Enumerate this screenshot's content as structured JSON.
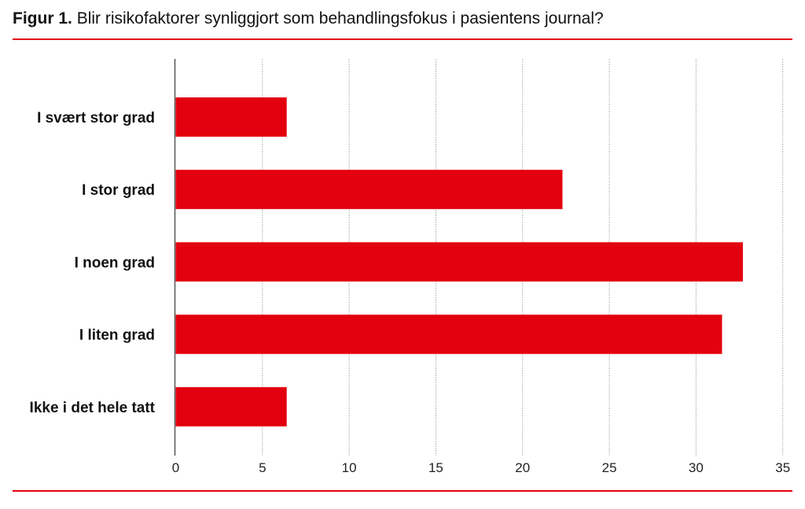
{
  "title": {
    "prefix": "Figur 1.",
    "text": "Blir risikofaktorer synliggjort som behandlingsfokus i pasientens journal?"
  },
  "colors": {
    "bar": "#e3000f",
    "rule": "#e3000f",
    "grid": "#bbbbbb"
  },
  "chart_data": {
    "type": "bar",
    "orientation": "horizontal",
    "title": "Blir risikofaktorer synliggjort som behandlingsfokus i pasientens journal?",
    "categories": [
      "I svært stor grad",
      "I stor grad",
      "I noen grad",
      "I liten grad",
      "Ikke i det hele tatt"
    ],
    "values": [
      6.4,
      22.3,
      32.7,
      31.5,
      6.4
    ],
    "xlim": [
      0,
      35
    ],
    "xticks": [
      0,
      5,
      10,
      15,
      20,
      25,
      30,
      35
    ],
    "grid": "vertical dotted",
    "xlabel": "",
    "ylabel": ""
  }
}
